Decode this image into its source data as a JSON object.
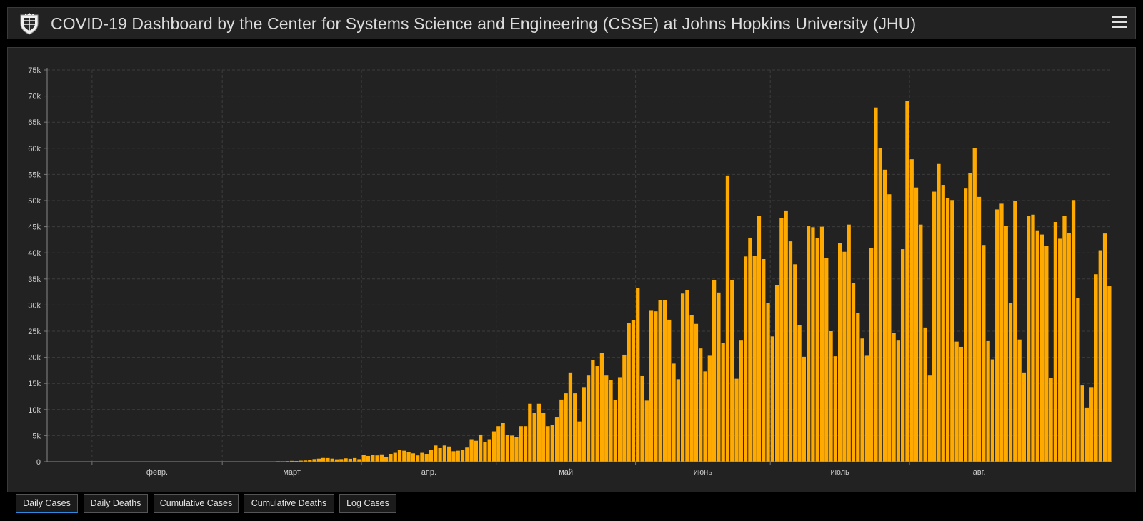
{
  "header": {
    "title": "COVID-19 Dashboard by the Center for Systems Science and Engineering (CSSE) at Johns Hopkins University (JHU)",
    "logo_icon": "jhu-shield-icon",
    "menu_icon": "hamburger-menu-icon"
  },
  "tabs": [
    {
      "label": "Daily Cases",
      "active": true
    },
    {
      "label": "Daily Deaths",
      "active": false
    },
    {
      "label": "Cumulative Cases",
      "active": false
    },
    {
      "label": "Cumulative Deaths",
      "active": false
    },
    {
      "label": "Log Cases",
      "active": false
    }
  ],
  "colors": {
    "bar": "#ffaa00",
    "background": "#222222",
    "grid": "#3c3c3c",
    "tab_active_underline": "#2d8cdf"
  },
  "chart_data": {
    "type": "bar",
    "title": "",
    "xlabel": "",
    "ylabel": "",
    "ylim": [
      0,
      75000
    ],
    "yticks": [
      0,
      5000,
      10000,
      15000,
      20000,
      25000,
      30000,
      35000,
      40000,
      45000,
      50000,
      55000,
      60000,
      65000,
      70000,
      75000
    ],
    "ytick_labels": [
      "0",
      "5k",
      "10k",
      "15k",
      "20k",
      "25k",
      "30k",
      "35k",
      "40k",
      "45k",
      "50k",
      "55k",
      "60k",
      "65k",
      "70k",
      "75k"
    ],
    "xtick_labels": [
      "февр.",
      "март",
      "апр.",
      "май",
      "июнь",
      "июль",
      "авг."
    ],
    "grid": true,
    "x_start": "2020-01-22",
    "values": [
      1,
      0,
      1,
      0,
      3,
      0,
      1,
      0,
      0,
      2,
      1,
      2,
      1,
      0,
      0,
      0,
      0,
      0,
      0,
      0,
      0,
      0,
      0,
      0,
      0,
      0,
      0,
      0,
      0,
      0,
      0,
      0,
      0,
      0,
      0,
      0,
      0,
      0,
      0,
      0,
      0,
      1,
      3,
      5,
      5,
      7,
      17,
      23,
      33,
      47,
      62,
      96,
      89,
      116,
      158,
      136,
      199,
      235,
      400,
      501,
      584,
      715,
      698,
      590,
      460,
      499,
      650,
      560,
      700,
      490,
      1300,
      1100,
      1300,
      1200,
      1400,
      900,
      1500,
      1700,
      2200,
      2100,
      1900,
      1600,
      1200,
      1700,
      1500,
      2200,
      3100,
      2600,
      3100,
      2900,
      2000,
      2100,
      2200,
      2700,
      4300,
      4000,
      5200,
      3800,
      4300,
      5800,
      6800,
      7500,
      5100,
      5000,
      4700,
      6800,
      6800,
      11100,
      9300,
      11100,
      9300,
      6800,
      7000,
      8600,
      11900,
      13100,
      17100,
      13100,
      7700,
      14300,
      16500,
      19500,
      18300,
      20800,
      16500,
      15700,
      11800,
      16200,
      20500,
      26500,
      27100,
      33200,
      16400,
      11700,
      28900,
      28800,
      30900,
      31000,
      27200,
      18800,
      15800,
      32200,
      32800,
      28100,
      26400,
      21700,
      17300,
      20300,
      34800,
      32400,
      22800,
      54800,
      34700,
      15900,
      23200,
      39300,
      42900,
      39400,
      47000,
      38800,
      30400,
      24000,
      33800,
      46600,
      48100,
      42200,
      37800,
      26100,
      20100,
      45200,
      44900,
      42800,
      45000,
      39000,
      25000,
      20200,
      41800,
      40200,
      45400,
      34200,
      28500,
      23600,
      20300,
      40900,
      67800,
      60000,
      55900,
      51200,
      24600,
      23200,
      40700,
      69100,
      57900,
      52500,
      45400,
      25700,
      16500,
      51700,
      57000,
      53000,
      50500,
      50100,
      23000,
      22000,
      52300,
      55300,
      60000,
      50700,
      41500,
      23100,
      19600,
      48300,
      49400,
      45100,
      30400,
      49900,
      23400,
      17100,
      47100,
      47300,
      44300,
      43500,
      41300,
      16100,
      45900,
      42700,
      47100,
      43800,
      50100,
      31300,
      14600,
      10400,
      14300,
      35900,
      40500,
      43700,
      33600
    ]
  }
}
